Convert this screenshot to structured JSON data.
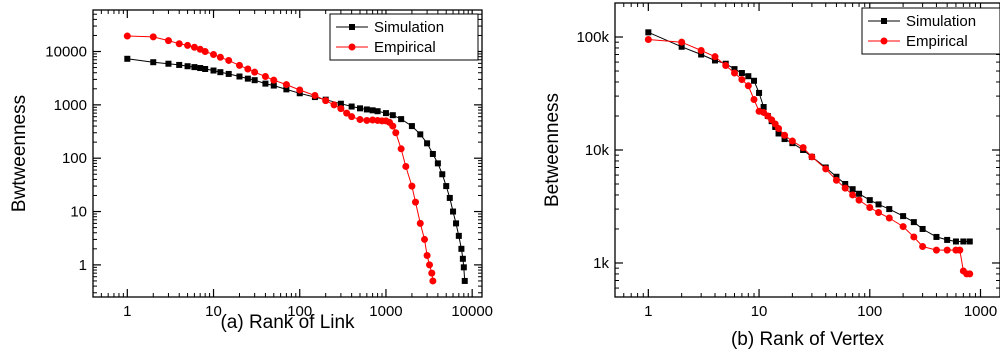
{
  "chart_data": [
    {
      "type": "scatter",
      "panel_caption": "(a)  Rank of Link",
      "xlabel": "",
      "ylabel": "Bwtweenness",
      "xscale": "log",
      "yscale": "log",
      "xlim": [
        0.4,
        13000
      ],
      "ylim": [
        0.25,
        60000
      ],
      "xticks": [
        1,
        10,
        100,
        1000,
        10000
      ],
      "xtick_labels": [
        "1",
        "10",
        "100",
        "1000",
        "10000"
      ],
      "yticks": [
        1,
        10,
        100,
        1000,
        10000
      ],
      "ytick_labels": [
        "1",
        "10",
        "100",
        "1000",
        "10000"
      ],
      "legend_position": "top-right",
      "series": [
        {
          "name": "Simulation",
          "color": "#000000",
          "marker": "square",
          "x": [
            1,
            2,
            3,
            4,
            5,
            6,
            7,
            8,
            10,
            12,
            15,
            20,
            25,
            30,
            40,
            50,
            70,
            100,
            150,
            200,
            300,
            400,
            500,
            600,
            700,
            800,
            1000,
            1200,
            1500,
            2000,
            2500,
            3000,
            3500,
            4000,
            4500,
            5000,
            5500,
            6000,
            6500,
            7000,
            7500,
            7800,
            8000,
            8200
          ],
          "y": [
            7300,
            6300,
            5900,
            5600,
            5300,
            5100,
            4900,
            4700,
            4400,
            4100,
            3800,
            3400,
            3100,
            2900,
            2500,
            2300,
            1950,
            1650,
            1400,
            1250,
            1050,
            930,
            860,
            820,
            790,
            760,
            700,
            640,
            540,
            400,
            280,
            190,
            120,
            80,
            50,
            30,
            18,
            10,
            6,
            3.5,
            2,
            1.3,
            0.9,
            0.5
          ]
        },
        {
          "name": "Empirical",
          "color": "#ff0000",
          "marker": "circle",
          "x": [
            1,
            2,
            3,
            4,
            5,
            6,
            7,
            8,
            10,
            12,
            15,
            20,
            25,
            30,
            40,
            50,
            70,
            100,
            150,
            200,
            250,
            300,
            350,
            400,
            500,
            600,
            700,
            800,
            900,
            1000,
            1100,
            1200,
            1300,
            1500,
            1700,
            2000,
            2200,
            2500,
            2800,
            3000,
            3200,
            3400,
            3500
          ],
          "y": [
            19500,
            18800,
            16000,
            14000,
            13000,
            12000,
            11000,
            10000,
            8800,
            7800,
            6800,
            5500,
            4700,
            4100,
            3400,
            2900,
            2400,
            1900,
            1500,
            1200,
            1000,
            850,
            700,
            600,
            530,
            510,
            520,
            510,
            500,
            500,
            470,
            400,
            300,
            150,
            70,
            30,
            15,
            6,
            3,
            1.5,
            1,
            0.7,
            0.5
          ]
        }
      ]
    },
    {
      "type": "scatter",
      "panel_caption": "(b)  Rank of Vertex",
      "xlabel": "",
      "ylabel": "Betweenness",
      "xscale": "log",
      "yscale": "log",
      "xlim": [
        0.5,
        1500
      ],
      "ylim": [
        500,
        200000
      ],
      "xticks": [
        1,
        10,
        100,
        1000
      ],
      "xtick_labels": [
        "1",
        "10",
        "100",
        "1000"
      ],
      "yticks": [
        1000,
        10000,
        100000
      ],
      "ytick_labels": [
        "1k",
        "10k",
        "100k"
      ],
      "legend_position": "top-right",
      "series": [
        {
          "name": "Simulation",
          "color": "#000000",
          "marker": "square",
          "x": [
            1,
            2,
            3,
            4,
            5,
            6,
            7,
            8,
            9,
            10,
            11,
            12,
            13,
            14,
            15,
            17,
            20,
            25,
            30,
            40,
            50,
            60,
            70,
            80,
            100,
            120,
            150,
            200,
            250,
            300,
            400,
            500,
            600,
            700,
            800
          ],
          "y": [
            110000,
            82000,
            70000,
            62000,
            58000,
            52000,
            48000,
            45000,
            41000,
            32000,
            24000,
            20000,
            18000,
            16000,
            14000,
            12500,
            11500,
            10000,
            8700,
            7000,
            5800,
            5000,
            4500,
            4100,
            3600,
            3300,
            3000,
            2600,
            2300,
            2000,
            1700,
            1600,
            1550,
            1550,
            1550
          ]
        },
        {
          "name": "Empirical",
          "color": "#ff0000",
          "marker": "circle",
          "x": [
            1,
            2,
            3,
            4,
            5,
            6,
            7,
            8,
            9,
            10,
            11,
            12,
            13,
            14,
            15,
            17,
            20,
            25,
            30,
            40,
            50,
            60,
            70,
            80,
            100,
            120,
            150,
            200,
            250,
            300,
            400,
            500,
            600,
            650,
            700,
            750,
            800
          ],
          "y": [
            95000,
            90000,
            76000,
            67000,
            56000,
            48000,
            42000,
            37000,
            28000,
            22000,
            21500,
            20000,
            18500,
            17000,
            15500,
            13500,
            12000,
            10500,
            8700,
            6800,
            5400,
            4600,
            4000,
            3600,
            3100,
            2800,
            2500,
            2100,
            1700,
            1400,
            1300,
            1300,
            1300,
            1300,
            850,
            800,
            800
          ]
        }
      ]
    }
  ]
}
